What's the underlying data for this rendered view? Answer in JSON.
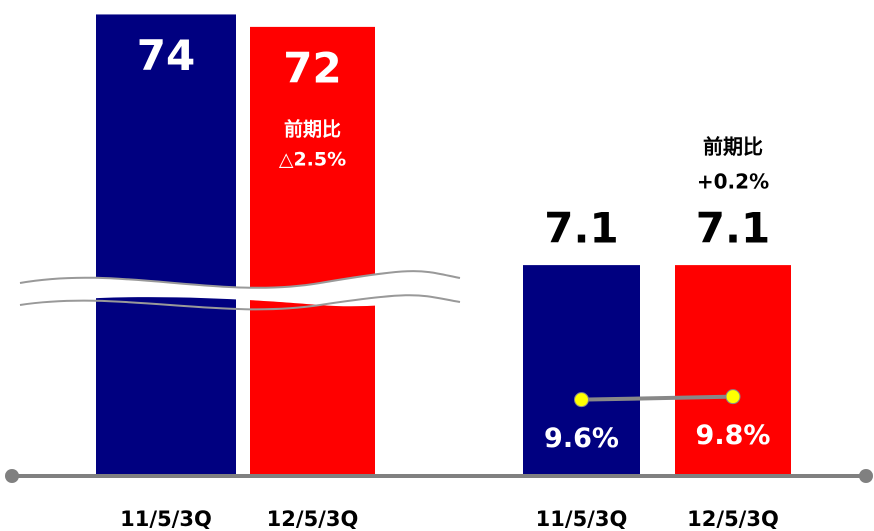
{
  "chart_data": [
    {
      "type": "bar",
      "categories": [
        "11/5/3Q",
        "12/5/3Q"
      ],
      "values": [
        74,
        72
      ],
      "colors": [
        "#000080",
        "#ff0000"
      ],
      "ylim": [
        0,
        76
      ],
      "broken_axis": true,
      "annotation": [
        "前期比",
        "△2.5%"
      ]
    },
    {
      "type": "bar",
      "categories": [
        "11/5/3Q",
        "12/5/3Q"
      ],
      "series": [
        {
          "type": "bar",
          "values": [
            7.1,
            7.1
          ],
          "colors": [
            "#000080",
            "#ff0000"
          ]
        },
        {
          "type": "line",
          "axis": "y2",
          "values": [
            9.6,
            9.8
          ],
          "value_labels": [
            "9.6%",
            "9.8%"
          ],
          "color": "#888888",
          "marker_color": "#ffff00"
        }
      ],
      "ylim": [
        0,
        16
      ],
      "y2lim": [
        4.6,
        36
      ],
      "annotation": [
        "前期比",
        "+0.2%"
      ]
    }
  ]
}
